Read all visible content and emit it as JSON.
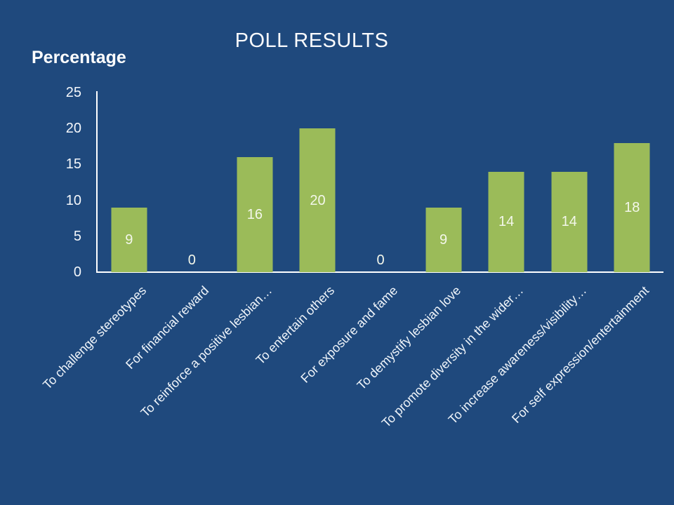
{
  "slide": {
    "title": "POLL RESULTS",
    "axis_title": "Percentage"
  },
  "colors": {
    "background": "#1F497D",
    "bar": "#9BBB59",
    "axis_line": "#FFFFFF",
    "title_text": "#FAFBFD",
    "tick_text": "#F4F7FB",
    "data_label_text": "#F3F7EA"
  },
  "chart_data": {
    "type": "bar",
    "title": "POLL RESULTS",
    "xlabel": "",
    "ylabel": "Percentage",
    "ylim": [
      0,
      25
    ],
    "yticks": [
      0,
      5,
      10,
      15,
      20,
      25
    ],
    "grid": false,
    "legend": false,
    "data_labels": true,
    "x_tick_label_rotation": 45,
    "categories": [
      "To challenge stereotypes",
      "For financial reward",
      "To reinforce a positive lesbian…",
      "To entertain others",
      "For exposure and fame",
      "To demystify lesbian love",
      "To promote diversity in the wider…",
      "To increase awareness/visibility…",
      "For self expression/entertainment"
    ],
    "values": [
      9,
      0,
      16,
      20,
      0,
      9,
      14,
      14,
      18
    ]
  }
}
